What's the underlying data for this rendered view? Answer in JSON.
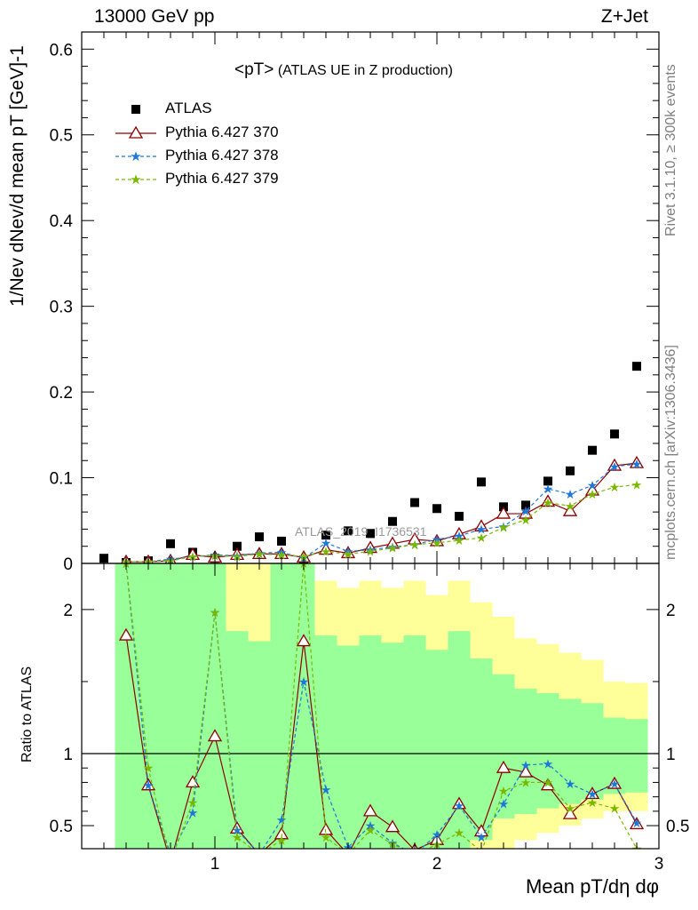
{
  "header": {
    "left": "13000 GeV pp",
    "right": "Z+Jet"
  },
  "plot_title": "<pT> (ATLAS UE in Z production)",
  "plot_title_main": "<pT>",
  "plot_title_sub": "(ATLAS UE in Z production)",
  "side_labels": {
    "rivet": "Rivet 3.1.10, ≥ 300k events",
    "mcplots": "mcplots.cern.ch [arXiv:1306.3436]"
  },
  "watermark": "ATLAS_2019_I1736531",
  "colors": {
    "data": "#000000",
    "p370": "#8b0000",
    "p378": "#1e78d8",
    "p379": "#7ab800",
    "band_green": "#99ff99",
    "band_yellow": "#ffff99"
  },
  "chart_data": [
    {
      "type": "scatter",
      "xlabel": "Mean pT/dη dφ",
      "ylabel": "1/Nev dNev/d mean pT [GeV]-1",
      "xlim": [
        0.4,
        3.0
      ],
      "ylim": [
        0,
        0.62
      ],
      "xticks": [
        1,
        2,
        3
      ],
      "yticks": [
        0,
        0.1,
        0.2,
        0.3,
        0.4,
        0.5,
        0.6
      ],
      "ytick_labels": [
        "0",
        "0.1",
        "0.2",
        "0.3",
        "0.4",
        "0.5",
        "0.6"
      ],
      "grid": false,
      "legend_position": "top-left",
      "x": [
        0.5,
        0.6,
        0.7,
        0.8,
        0.9,
        1.0,
        1.1,
        1.2,
        1.3,
        1.4,
        1.5,
        1.6,
        1.7,
        1.8,
        1.9,
        2.0,
        2.1,
        2.2,
        2.3,
        2.4,
        2.5,
        2.6,
        2.7,
        2.8,
        2.9
      ],
      "series": [
        {
          "name": "ATLAS",
          "marker": "square",
          "values": [
            0.006,
            0.001,
            0.003,
            0.023,
            0.013,
            0.006,
            0.02,
            0.031,
            0.026,
            0.004,
            0.033,
            0.038,
            0.035,
            0.049,
            0.071,
            0.064,
            0.055,
            0.095,
            0.066,
            0.068,
            0.096,
            0.108,
            0.132,
            0.151,
            0.23
          ]
        },
        {
          "name": "Pythia 6.427 370",
          "marker": "triangle",
          "line": "solid",
          "values": [
            null,
            0.002,
            0.002,
            0.003,
            0.01,
            0.007,
            0.01,
            0.011,
            0.011,
            0.007,
            0.016,
            0.012,
            0.018,
            0.023,
            0.028,
            0.026,
            0.034,
            0.043,
            0.058,
            0.058,
            0.072,
            0.061,
            0.085,
            0.114,
            0.117
          ]
        },
        {
          "name": "Pythia 6.427 378",
          "marker": "star",
          "line": "dashed",
          "values": [
            null,
            0.002,
            0.002,
            0.005,
            0.008,
            0.01,
            0.009,
            0.012,
            0.013,
            0.006,
            0.024,
            0.014,
            0.016,
            0.019,
            0.022,
            0.028,
            0.032,
            0.04,
            0.043,
            0.061,
            0.087,
            0.081,
            0.091,
            0.113,
            0.116
          ]
        },
        {
          "name": "Pythia 6.427 379",
          "marker": "star",
          "line": "dashed",
          "values": [
            null,
            0.002,
            0.002,
            0.003,
            0.008,
            0.009,
            0.008,
            0.011,
            0.01,
            0.008,
            0.014,
            0.011,
            0.014,
            0.018,
            0.022,
            0.024,
            0.027,
            0.03,
            0.042,
            0.051,
            0.071,
            0.067,
            0.081,
            0.089,
            0.092
          ]
        }
      ]
    },
    {
      "type": "line",
      "xlabel": "Mean pT/dη dφ",
      "ylabel": "Ratio to ATLAS",
      "xlim": [
        0.4,
        3.0
      ],
      "ylim": [
        0.34,
        2.32
      ],
      "xticks": [
        1,
        2,
        3
      ],
      "yticks": [
        0.5,
        1,
        2
      ],
      "ytick_labels": [
        "0.5",
        "1",
        "2"
      ],
      "grid": false,
      "x": [
        0.5,
        0.6,
        0.7,
        0.8,
        0.9,
        1.0,
        1.1,
        1.2,
        1.3,
        1.4,
        1.5,
        1.6,
        1.7,
        1.8,
        1.9,
        2.0,
        2.1,
        2.2,
        2.3,
        2.4,
        2.5,
        2.6,
        2.7,
        2.8,
        2.9
      ],
      "band_green_hi": [
        null,
        2.32,
        2.32,
        2.32,
        2.32,
        2.32,
        1.85,
        1.78,
        2.32,
        2.32,
        1.82,
        1.75,
        1.82,
        1.77,
        1.82,
        1.72,
        1.85,
        1.66,
        1.55,
        1.45,
        1.42,
        1.38,
        1.35,
        1.25,
        1.24
      ],
      "band_green_lo": [
        null,
        0.34,
        0.34,
        0.34,
        0.34,
        0.34,
        0.34,
        0.34,
        0.34,
        0.34,
        0.34,
        0.34,
        0.34,
        0.34,
        0.34,
        0.34,
        0.34,
        0.4,
        0.55,
        0.58,
        0.62,
        0.65,
        0.68,
        0.72,
        0.73
      ],
      "band_yellow_hi": [
        null,
        2.32,
        2.32,
        2.32,
        2.32,
        2.32,
        2.32,
        2.32,
        2.32,
        2.32,
        2.2,
        2.15,
        2.2,
        2.15,
        2.2,
        2.1,
        2.2,
        2.05,
        1.95,
        1.8,
        1.76,
        1.7,
        1.65,
        1.5,
        1.49
      ],
      "band_yellow_lo": [
        null,
        0.34,
        0.34,
        0.34,
        0.34,
        0.34,
        0.34,
        0.34,
        0.34,
        0.34,
        0.34,
        0.34,
        0.34,
        0.34,
        0.34,
        0.34,
        0.34,
        0.34,
        0.34,
        0.4,
        0.45,
        0.5,
        0.55,
        0.6,
        0.6
      ],
      "series": [
        {
          "name": "Pythia 6.427 370",
          "values": [
            null,
            1.82,
            0.78,
            0.25,
            0.8,
            1.12,
            0.48,
            0.3,
            0.44,
            1.78,
            0.47,
            0.3,
            0.6,
            0.49,
            0.33,
            0.4,
            0.65,
            0.46,
            0.9,
            0.87,
            0.78,
            0.58,
            0.72,
            0.79,
            0.51
          ]
        },
        {
          "name": "Pythia 6.427 378",
          "values": [
            null,
            2.32,
            0.78,
            0.3,
            0.59,
            1.98,
            0.47,
            0.3,
            0.54,
            1.5,
            0.75,
            0.35,
            0.5,
            0.38,
            0.3,
            0.44,
            0.64,
            0.42,
            0.65,
            0.92,
            0.93,
            0.79,
            0.72,
            0.79,
            0.52
          ]
        },
        {
          "name": "Pythia 6.427 379",
          "values": [
            null,
            2.32,
            0.9,
            0.25,
            0.66,
            1.98,
            0.42,
            0.3,
            0.4,
            2.32,
            0.42,
            0.3,
            0.47,
            0.37,
            0.3,
            0.37,
            0.45,
            0.32,
            0.74,
            0.8,
            0.8,
            0.62,
            0.66,
            0.62,
            0.34
          ]
        }
      ]
    }
  ]
}
